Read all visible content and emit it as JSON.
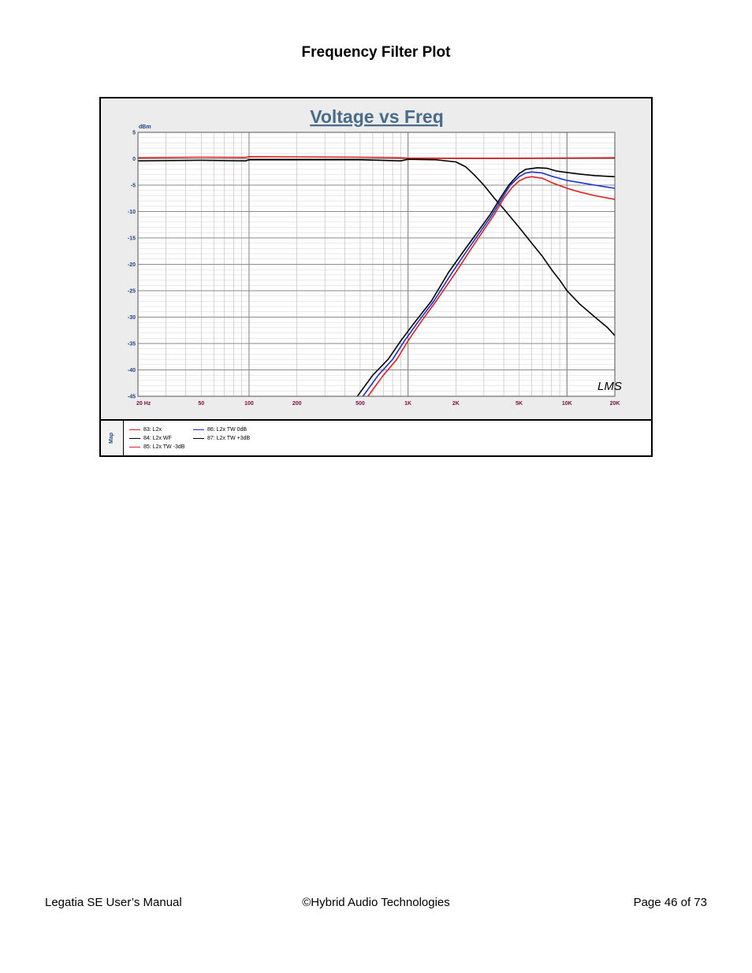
{
  "page_heading": "Frequency Filter Plot",
  "footer": {
    "left": "Legatia SE User’s Manual",
    "center": "©Hybrid Audio Technologies",
    "right": "Page 46 of 73"
  },
  "legend_side_label": "Map",
  "signature": "LMS",
  "colors": {
    "red": "#e02020",
    "black": "#000000",
    "blue": "#1a2fd6",
    "title": "#4a6b8a",
    "tick": "#7a1040",
    "ylab": "#1f3f8a"
  },
  "chart_data": {
    "type": "line",
    "title": "Voltage vs Freq",
    "ylabel": "dBm",
    "xlabel": "",
    "x_scale": "log",
    "xlim": [
      20,
      20000
    ],
    "ylim": [
      -45,
      5
    ],
    "grid": true,
    "x_ticks": [
      {
        "value": 20,
        "label": "20  Hz"
      },
      {
        "value": 50,
        "label": "50"
      },
      {
        "value": 100,
        "label": "100"
      },
      {
        "value": 200,
        "label": "200"
      },
      {
        "value": 500,
        "label": "500"
      },
      {
        "value": 1000,
        "label": "1K"
      },
      {
        "value": 2000,
        "label": "2K"
      },
      {
        "value": 5000,
        "label": "5K"
      },
      {
        "value": 10000,
        "label": "10K"
      },
      {
        "value": 20000,
        "label": "20K"
      }
    ],
    "y_ticks": [
      5,
      0,
      -5,
      -10,
      -15,
      -20,
      -25,
      -30,
      -35,
      -40,
      -45
    ],
    "series": [
      {
        "name": "83: L2x",
        "color": "#e02020",
        "points": [
          [
            20,
            0.2
          ],
          [
            50,
            0.3
          ],
          [
            95,
            0.25
          ],
          [
            100,
            0.4
          ],
          [
            500,
            0.3
          ],
          [
            900,
            0.2
          ],
          [
            1000,
            0.1
          ],
          [
            2000,
            0.1
          ],
          [
            5000,
            0.1
          ],
          [
            10000,
            0.15
          ],
          [
            20000,
            0.2
          ]
        ]
      },
      {
        "name": "84: L2x WF",
        "color": "#000000",
        "points": [
          [
            20,
            -0.4
          ],
          [
            50,
            -0.3
          ],
          [
            95,
            -0.4
          ],
          [
            100,
            -0.2
          ],
          [
            500,
            -0.2
          ],
          [
            900,
            -0.4
          ],
          [
            1000,
            -0.1
          ],
          [
            1500,
            -0.2
          ],
          [
            2000,
            -0.6
          ],
          [
            2300,
            -1.5
          ],
          [
            2600,
            -3
          ],
          [
            3000,
            -5
          ],
          [
            3500,
            -7.5
          ],
          [
            4000,
            -9.5
          ],
          [
            5000,
            -13
          ],
          [
            6000,
            -16
          ],
          [
            7000,
            -18.5
          ],
          [
            8000,
            -21
          ],
          [
            9000,
            -23
          ],
          [
            10000,
            -25
          ],
          [
            12000,
            -27.5
          ],
          [
            15000,
            -30
          ],
          [
            18000,
            -32
          ],
          [
            20000,
            -33.5
          ]
        ]
      },
      {
        "name": "85: L2x TW  -3dB",
        "color": "#e02020",
        "points": [
          [
            560,
            -45
          ],
          [
            700,
            -41
          ],
          [
            850,
            -38
          ],
          [
            1000,
            -34.5
          ],
          [
            1200,
            -31
          ],
          [
            1500,
            -27
          ],
          [
            2000,
            -21.5
          ],
          [
            2500,
            -17
          ],
          [
            3000,
            -13.5
          ],
          [
            3500,
            -10.5
          ],
          [
            4000,
            -7.5
          ],
          [
            4500,
            -5.5
          ],
          [
            5000,
            -4.2
          ],
          [
            5500,
            -3.6
          ],
          [
            6000,
            -3.4
          ],
          [
            7000,
            -3.7
          ],
          [
            8000,
            -4.5
          ],
          [
            10000,
            -5.6
          ],
          [
            12000,
            -6.3
          ],
          [
            15000,
            -7.0
          ],
          [
            20000,
            -7.7
          ]
        ]
      },
      {
        "name": "86: L2x TW  0dB",
        "color": "#1a2fd6",
        "points": [
          [
            520,
            -45
          ],
          [
            650,
            -41
          ],
          [
            800,
            -38
          ],
          [
            950,
            -34.5
          ],
          [
            1150,
            -31
          ],
          [
            1450,
            -27
          ],
          [
            1900,
            -21.5
          ],
          [
            2400,
            -17
          ],
          [
            2900,
            -13.5
          ],
          [
            3400,
            -10.5
          ],
          [
            3900,
            -7.5
          ],
          [
            4400,
            -5
          ],
          [
            5000,
            -3.4
          ],
          [
            5500,
            -2.7
          ],
          [
            6000,
            -2.5
          ],
          [
            7000,
            -2.7
          ],
          [
            8000,
            -3.3
          ],
          [
            10000,
            -4.1
          ],
          [
            12000,
            -4.5
          ],
          [
            15000,
            -5.0
          ],
          [
            20000,
            -5.6
          ]
        ]
      },
      {
        "name": "87: L2x TW  +3dB",
        "color": "#000000",
        "points": [
          [
            480,
            -45
          ],
          [
            600,
            -41
          ],
          [
            750,
            -38
          ],
          [
            900,
            -34.5
          ],
          [
            1100,
            -31
          ],
          [
            1400,
            -27
          ],
          [
            1800,
            -21.5
          ],
          [
            2300,
            -17
          ],
          [
            2800,
            -13.5
          ],
          [
            3300,
            -10.5
          ],
          [
            3800,
            -7.5
          ],
          [
            4300,
            -5
          ],
          [
            5000,
            -2.8
          ],
          [
            5500,
            -2.0
          ],
          [
            6500,
            -1.7
          ],
          [
            7500,
            -1.8
          ],
          [
            8500,
            -2.3
          ],
          [
            10000,
            -2.6
          ],
          [
            12000,
            -2.9
          ],
          [
            15000,
            -3.2
          ],
          [
            20000,
            -3.4
          ]
        ]
      }
    ]
  }
}
